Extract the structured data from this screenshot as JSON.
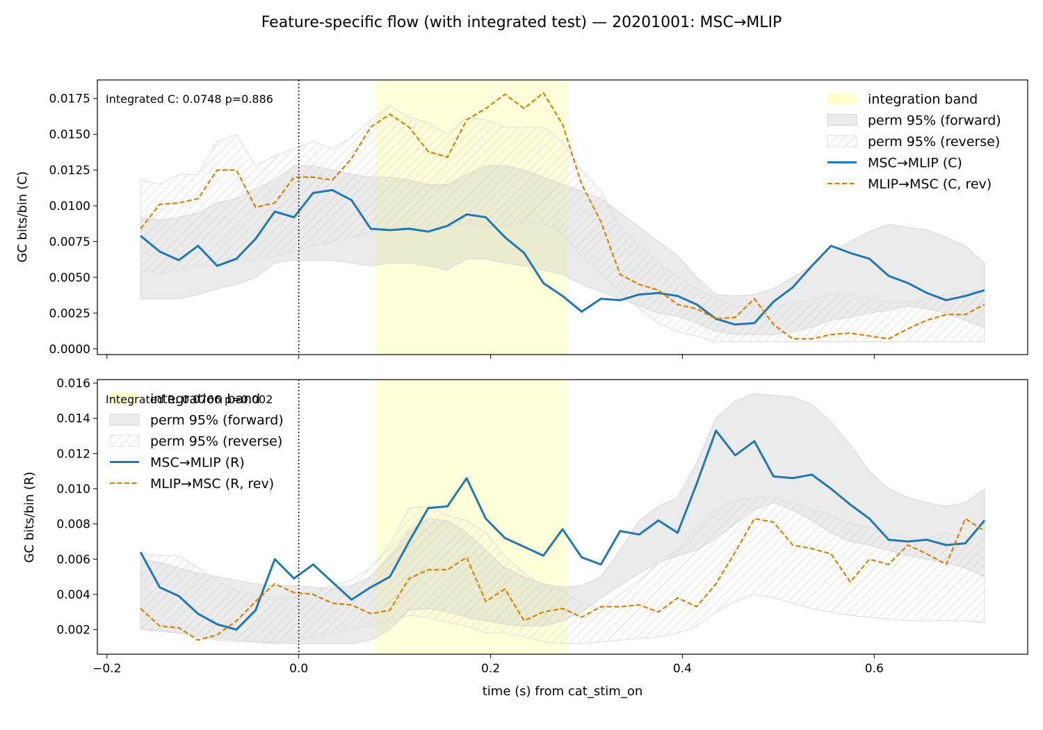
{
  "figure": {
    "title": "Feature-specific flow (with integrated test) — 20201001: MSC→MLIP",
    "xlabel": "time (s) from cat_stim_on"
  },
  "colors": {
    "forward": "#1f77b4",
    "reverse": "#d68100",
    "band": "#ffffcc",
    "perm": "#bdbdbd",
    "hatch": "#c8c8c8"
  },
  "chart_data": [
    {
      "type": "line",
      "panel": "C",
      "ylabel": "GC bits/bin (C)",
      "annotation": "Integrated C: 0.0748  p=0.886",
      "xlim": [
        -0.21,
        0.76
      ],
      "ylim": [
        -0.0004,
        0.0188
      ],
      "xticks": [
        -0.2,
        0.0,
        0.2,
        0.4,
        0.6
      ],
      "xtick_labels_visible": false,
      "yticks": [
        0.0,
        0.0025,
        0.005,
        0.0075,
        0.01,
        0.0125,
        0.015,
        0.0175
      ],
      "ytick_labels": [
        "0.0000",
        "0.0025",
        "0.0050",
        "0.0075",
        "0.0100",
        "0.0125",
        "0.0150",
        "0.0175"
      ],
      "vline_x": 0.0,
      "integration_band": [
        0.08,
        0.28
      ],
      "legend_position": "upper right",
      "legend": {
        "band": "integration band",
        "perm_forward": "perm 95% (forward)",
        "perm_reverse": "perm 95% (reverse)",
        "forward": "MSC→MLIP (C)",
        "reverse": "MLIP→MSC (C, rev)"
      },
      "x": [
        -0.165,
        -0.145,
        -0.125,
        -0.105,
        -0.085,
        -0.065,
        -0.045,
        -0.025,
        -0.005,
        0.015,
        0.035,
        0.055,
        0.075,
        0.095,
        0.115,
        0.135,
        0.155,
        0.175,
        0.195,
        0.215,
        0.235,
        0.255,
        0.275,
        0.295,
        0.315,
        0.335,
        0.355,
        0.375,
        0.395,
        0.415,
        0.435,
        0.455,
        0.475,
        0.495,
        0.515,
        0.535,
        0.555,
        0.575,
        0.595,
        0.615,
        0.635,
        0.655,
        0.675,
        0.695,
        0.715
      ],
      "series": [
        {
          "name": "MSC→MLIP (C)",
          "values": [
            0.0079,
            0.0068,
            0.0062,
            0.0072,
            0.0058,
            0.0063,
            0.0077,
            0.0096,
            0.0092,
            0.0109,
            0.0111,
            0.0104,
            0.0084,
            0.0083,
            0.0084,
            0.0082,
            0.0086,
            0.0094,
            0.0092,
            0.0078,
            0.0067,
            0.0046,
            0.0037,
            0.0026,
            0.0035,
            0.0034,
            0.0038,
            0.0039,
            0.0037,
            0.0031,
            0.0021,
            0.0017,
            0.0018,
            0.0033,
            0.0043,
            0.0058,
            0.0072,
            0.0067,
            0.0063,
            0.0051,
            0.0046,
            0.0039,
            0.0034,
            0.0037,
            0.0041
          ]
        },
        {
          "name": "MLIP→MSC (C, rev)",
          "values": [
            0.0084,
            0.0101,
            0.0102,
            0.0105,
            0.0125,
            0.0125,
            0.0099,
            0.0102,
            0.012,
            0.012,
            0.0118,
            0.0133,
            0.0155,
            0.0164,
            0.0155,
            0.0138,
            0.0134,
            0.016,
            0.0168,
            0.0178,
            0.0168,
            0.0179,
            0.0157,
            0.0115,
            0.0089,
            0.0052,
            0.0045,
            0.0041,
            0.0031,
            0.0028,
            0.0021,
            0.0022,
            0.0035,
            0.0017,
            0.0007,
            0.0007,
            0.001,
            0.0011,
            0.0009,
            0.0007,
            0.0014,
            0.002,
            0.0024,
            0.0024,
            0.0031
          ]
        }
      ],
      "perm_forward": {
        "lower": [
          0.0035,
          0.0035,
          0.0035,
          0.0038,
          0.0042,
          0.0045,
          0.005,
          0.006,
          0.0062,
          0.0062,
          0.0062,
          0.006,
          0.0058,
          0.006,
          0.006,
          0.0058,
          0.0055,
          0.0063,
          0.0063,
          0.006,
          0.0058,
          0.0055,
          0.0052,
          0.0045,
          0.004,
          0.0035,
          0.003,
          0.0025,
          0.0023,
          0.0018,
          0.0012,
          0.001,
          0.001,
          0.001,
          0.0012,
          0.0015,
          0.002,
          0.0022,
          0.0025,
          0.0027,
          0.003,
          0.0028,
          0.0025,
          0.002,
          0.0015
        ],
        "upper": [
          0.0092,
          0.009,
          0.0092,
          0.0095,
          0.0102,
          0.0105,
          0.0112,
          0.0118,
          0.0128,
          0.0128,
          0.0125,
          0.0122,
          0.012,
          0.012,
          0.0118,
          0.0115,
          0.0115,
          0.0122,
          0.0128,
          0.0128,
          0.0125,
          0.012,
          0.0115,
          0.011,
          0.0105,
          0.0095,
          0.0085,
          0.0075,
          0.0065,
          0.005,
          0.0038,
          0.0037,
          0.0038,
          0.0042,
          0.005,
          0.0058,
          0.0068,
          0.0075,
          0.0082,
          0.0087,
          0.0085,
          0.0083,
          0.0078,
          0.0072,
          0.006
        ]
      },
      "perm_reverse": {
        "lower": [
          0.0055,
          0.0053,
          0.0055,
          0.0058,
          0.0058,
          0.0062,
          0.0062,
          0.0065,
          0.0068,
          0.0072,
          0.0075,
          0.0078,
          0.0082,
          0.0085,
          0.0085,
          0.0082,
          0.0085,
          0.0088,
          0.0085,
          0.0085,
          0.0088,
          0.0088,
          0.008,
          0.0065,
          0.0052,
          0.004,
          0.0028,
          0.0018,
          0.0012,
          0.0009,
          0.0005,
          0.0005,
          0.0005,
          0.0005,
          0.0005,
          0.0005,
          0.0005,
          0.0005,
          0.0005,
          0.0005,
          0.0005,
          0.0005,
          0.0005,
          0.0005,
          0.0005
        ],
        "upper": [
          0.0118,
          0.0115,
          0.0122,
          0.0122,
          0.0145,
          0.015,
          0.0128,
          0.0135,
          0.014,
          0.0145,
          0.014,
          0.0148,
          0.016,
          0.017,
          0.0162,
          0.0158,
          0.015,
          0.0162,
          0.016,
          0.0155,
          0.0155,
          0.0155,
          0.0145,
          0.0125,
          0.011,
          0.0085,
          0.0072,
          0.006,
          0.005,
          0.0042,
          0.0035,
          0.003,
          0.003,
          0.003,
          0.0032,
          0.0035,
          0.0038,
          0.0038,
          0.0035,
          0.0033,
          0.0033,
          0.0035,
          0.0038,
          0.004,
          0.0041
        ]
      }
    },
    {
      "type": "line",
      "panel": "R",
      "ylabel": "GC bits/bin (R)",
      "annotation": "Integrated R: 0.0766  p=0.002",
      "xlim": [
        -0.21,
        0.76
      ],
      "ylim": [
        0.0006,
        0.0162
      ],
      "xticks": [
        -0.2,
        0.0,
        0.2,
        0.4,
        0.6
      ],
      "xtick_labels": [
        "−0.2",
        "0.0",
        "0.2",
        "0.4",
        "0.6"
      ],
      "xtick_labels_visible": true,
      "yticks": [
        0.002,
        0.004,
        0.006,
        0.008,
        0.01,
        0.012,
        0.014,
        0.016
      ],
      "ytick_labels": [
        "0.002",
        "0.004",
        "0.006",
        "0.008",
        "0.010",
        "0.012",
        "0.014",
        "0.016"
      ],
      "vline_x": 0.0,
      "integration_band": [
        0.08,
        0.28
      ],
      "legend_position": "upper left",
      "legend": {
        "band": "integration band",
        "perm_forward": "perm 95% (forward)",
        "perm_reverse": "perm 95% (reverse)",
        "forward": "MSC→MLIP (R)",
        "reverse": "MLIP→MSC (R, rev)"
      },
      "x": [
        -0.165,
        -0.145,
        -0.125,
        -0.105,
        -0.085,
        -0.065,
        -0.045,
        -0.025,
        -0.005,
        0.015,
        0.035,
        0.055,
        0.075,
        0.095,
        0.115,
        0.135,
        0.155,
        0.175,
        0.195,
        0.215,
        0.235,
        0.255,
        0.275,
        0.295,
        0.315,
        0.335,
        0.355,
        0.375,
        0.395,
        0.415,
        0.435,
        0.455,
        0.475,
        0.495,
        0.515,
        0.535,
        0.555,
        0.575,
        0.595,
        0.615,
        0.635,
        0.655,
        0.675,
        0.695,
        0.715
      ],
      "series": [
        {
          "name": "MSC→MLIP (R)",
          "values": [
            0.0064,
            0.0044,
            0.0039,
            0.0029,
            0.0023,
            0.002,
            0.0031,
            0.006,
            0.0049,
            0.0057,
            0.0047,
            0.0037,
            0.0044,
            0.005,
            0.007,
            0.0089,
            0.009,
            0.0106,
            0.0083,
            0.0072,
            0.0067,
            0.0062,
            0.0077,
            0.0061,
            0.0057,
            0.0076,
            0.0074,
            0.0082,
            0.0075,
            0.0103,
            0.0133,
            0.0119,
            0.0127,
            0.0107,
            0.0106,
            0.0108,
            0.01,
            0.0091,
            0.0083,
            0.0071,
            0.007,
            0.0071,
            0.0068,
            0.0069,
            0.0082
          ]
        },
        {
          "name": "MLIP→MSC (R, rev)",
          "values": [
            0.0032,
            0.0022,
            0.0021,
            0.0014,
            0.0017,
            0.0025,
            0.0036,
            0.0046,
            0.0041,
            0.004,
            0.0035,
            0.0034,
            0.0029,
            0.0031,
            0.0049,
            0.0054,
            0.0054,
            0.0061,
            0.0036,
            0.0043,
            0.0025,
            0.003,
            0.0032,
            0.0027,
            0.0033,
            0.0033,
            0.0034,
            0.003,
            0.0038,
            0.0033,
            0.0046,
            0.0064,
            0.0083,
            0.0081,
            0.0068,
            0.0066,
            0.0063,
            0.0047,
            0.006,
            0.0057,
            0.0068,
            0.0063,
            0.0057,
            0.0083,
            0.0076
          ]
        }
      ],
      "perm_forward": {
        "lower": [
          0.002,
          0.0019,
          0.0018,
          0.0016,
          0.0015,
          0.0014,
          0.0013,
          0.0012,
          0.0012,
          0.0012,
          0.0012,
          0.0012,
          0.0014,
          0.002,
          0.0031,
          0.0032,
          0.003,
          0.0027,
          0.0025,
          0.0023,
          0.0022,
          0.0022,
          0.0025,
          0.003,
          0.0038,
          0.0045,
          0.0052,
          0.0058,
          0.0062,
          0.0065,
          0.0072,
          0.008,
          0.0088,
          0.0092,
          0.0088,
          0.0082,
          0.0075,
          0.007,
          0.0068,
          0.0065,
          0.0062,
          0.006,
          0.0058,
          0.0055,
          0.005
        ],
        "upper": [
          0.006,
          0.0058,
          0.0055,
          0.0052,
          0.005,
          0.0048,
          0.0046,
          0.0045,
          0.0045,
          0.0044,
          0.0043,
          0.0045,
          0.005,
          0.0062,
          0.0076,
          0.0083,
          0.0082,
          0.0075,
          0.0065,
          0.0055,
          0.005,
          0.0046,
          0.0044,
          0.0045,
          0.005,
          0.0065,
          0.0082,
          0.009,
          0.0095,
          0.0115,
          0.014,
          0.015,
          0.0154,
          0.0153,
          0.0152,
          0.0148,
          0.0138,
          0.0125,
          0.011,
          0.01,
          0.0095,
          0.0092,
          0.009,
          0.0092,
          0.01
        ]
      },
      "perm_reverse": {
        "lower": [
          0.002,
          0.002,
          0.0018,
          0.0016,
          0.0014,
          0.0013,
          0.0013,
          0.0013,
          0.0014,
          0.0016,
          0.0018,
          0.002,
          0.0022,
          0.0025,
          0.0028,
          0.0027,
          0.0024,
          0.0022,
          0.0018,
          0.0018,
          0.0016,
          0.0013,
          0.0012,
          0.0012,
          0.0013,
          0.0014,
          0.0015,
          0.0016,
          0.0018,
          0.0022,
          0.003,
          0.0036,
          0.004,
          0.0038,
          0.0035,
          0.0032,
          0.003,
          0.0028,
          0.0027,
          0.0026,
          0.0025,
          0.0025,
          0.0025,
          0.0025,
          0.0024
        ],
        "upper": [
          0.0063,
          0.0062,
          0.0062,
          0.0055,
          0.0048,
          0.0042,
          0.004,
          0.0038,
          0.0038,
          0.0042,
          0.0045,
          0.0048,
          0.0055,
          0.0068,
          0.0089,
          0.009,
          0.0085,
          0.0082,
          0.0075,
          0.0062,
          0.0052,
          0.0045,
          0.0042,
          0.0035,
          0.0032,
          0.004,
          0.0048,
          0.0058,
          0.0065,
          0.0078,
          0.0088,
          0.0093,
          0.0095,
          0.0095,
          0.0092,
          0.0088,
          0.0085,
          0.008,
          0.0078,
          0.0075,
          0.0072,
          0.0072,
          0.0075,
          0.0072,
          0.0072
        ]
      }
    }
  ]
}
